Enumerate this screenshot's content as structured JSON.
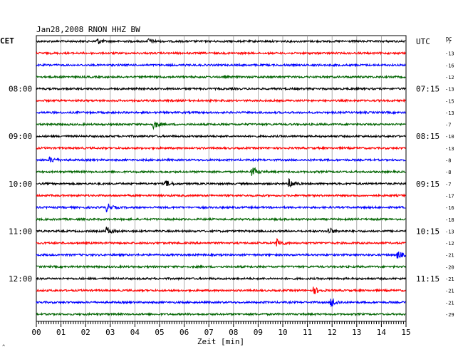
{
  "chart_data": {
    "type": "line",
    "title": "Jan28,2008    RNON HHZ BW",
    "left_timezone": "CET",
    "right_timezone": "UTC",
    "offset_header": "DC",
    "xlabel": "Zeit [min]",
    "xlim": [
      0,
      15
    ],
    "x_ticks": [
      "00",
      "01",
      "02",
      "03",
      "04",
      "05",
      "06",
      "07",
      "08",
      "09",
      "10",
      "11",
      "12",
      "13",
      "14",
      "15"
    ],
    "grid": true,
    "colors": [
      "#000000",
      "#ff0000",
      "#0000ff",
      "#006400"
    ],
    "left_hour_labels": [
      {
        "row": 4,
        "text": "08:00"
      },
      {
        "row": 8,
        "text": "09:00"
      },
      {
        "row": 12,
        "text": "10:00"
      },
      {
        "row": 16,
        "text": "11:00"
      },
      {
        "row": 20,
        "text": "12:00"
      }
    ],
    "right_hour_labels": [
      {
        "row": 0,
        "text": "UTC"
      },
      {
        "row": 4,
        "text": "07:15"
      },
      {
        "row": 8,
        "text": "08:15"
      },
      {
        "row": 12,
        "text": "09:15"
      },
      {
        "row": 16,
        "text": "10:15"
      },
      {
        "row": 20,
        "text": "11:15"
      }
    ],
    "dc_offsets": [
      "-7",
      "-13",
      "-16",
      "-12",
      "-13",
      "-15",
      "-13",
      "-7",
      "-10",
      "-13",
      "-8",
      "-8",
      "-7",
      "-17",
      "-16",
      "-18",
      "-13",
      "-12",
      "-21",
      "-20",
      "-21",
      "-21",
      "-21",
      "-29"
    ],
    "events": [
      {
        "row": 0,
        "minute": 2.5,
        "amp": 1.6
      },
      {
        "row": 0,
        "minute": 4.6,
        "amp": 1.4
      },
      {
        "row": 7,
        "minute": 4.8,
        "amp": 2.2
      },
      {
        "row": 10,
        "minute": 0.6,
        "amp": 1.6
      },
      {
        "row": 11,
        "minute": 8.8,
        "amp": 2.6
      },
      {
        "row": 12,
        "minute": 5.3,
        "amp": 1.6
      },
      {
        "row": 12,
        "minute": 10.3,
        "amp": 2.6
      },
      {
        "row": 14,
        "minute": 2.9,
        "amp": 2.2
      },
      {
        "row": 16,
        "minute": 2.9,
        "amp": 2.2
      },
      {
        "row": 16,
        "minute": 11.9,
        "amp": 1.8
      },
      {
        "row": 17,
        "minute": 9.8,
        "amp": 2.4
      },
      {
        "row": 18,
        "minute": 14.7,
        "amp": 2.0
      },
      {
        "row": 21,
        "minute": 11.3,
        "amp": 1.8
      },
      {
        "row": 22,
        "minute": 12.0,
        "amp": 2.8
      }
    ],
    "footer_mark": "^"
  }
}
